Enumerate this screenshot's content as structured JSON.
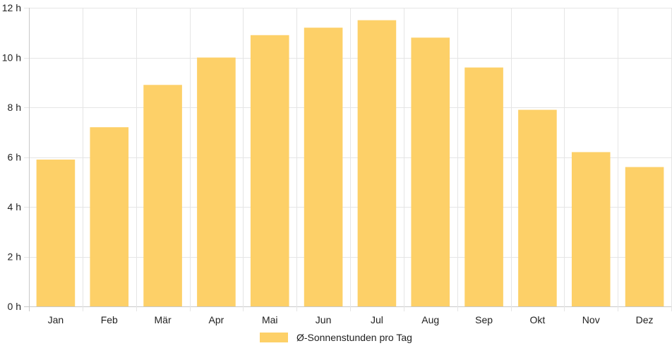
{
  "chart_data": {
    "type": "bar",
    "categories": [
      "Jan",
      "Feb",
      "Mär",
      "Apr",
      "Mai",
      "Jun",
      "Jul",
      "Aug",
      "Sep",
      "Okt",
      "Nov",
      "Dez"
    ],
    "series": [
      {
        "name": "Ø-Sonnenstunden pro Tag",
        "values": [
          5.9,
          7.2,
          8.9,
          10.0,
          10.9,
          11.2,
          11.5,
          10.8,
          9.6,
          7.9,
          6.2,
          5.6
        ]
      }
    ],
    "ylim": [
      0,
      12
    ],
    "yticks": [
      0,
      2,
      4,
      6,
      8,
      10,
      12
    ],
    "ytick_labels": [
      "0 h",
      "2 h",
      "4 h",
      "6 h",
      "8 h",
      "10 h",
      "12 h"
    ],
    "grid": true,
    "legend_position": "bottom",
    "bar_color": "#fdd068"
  }
}
